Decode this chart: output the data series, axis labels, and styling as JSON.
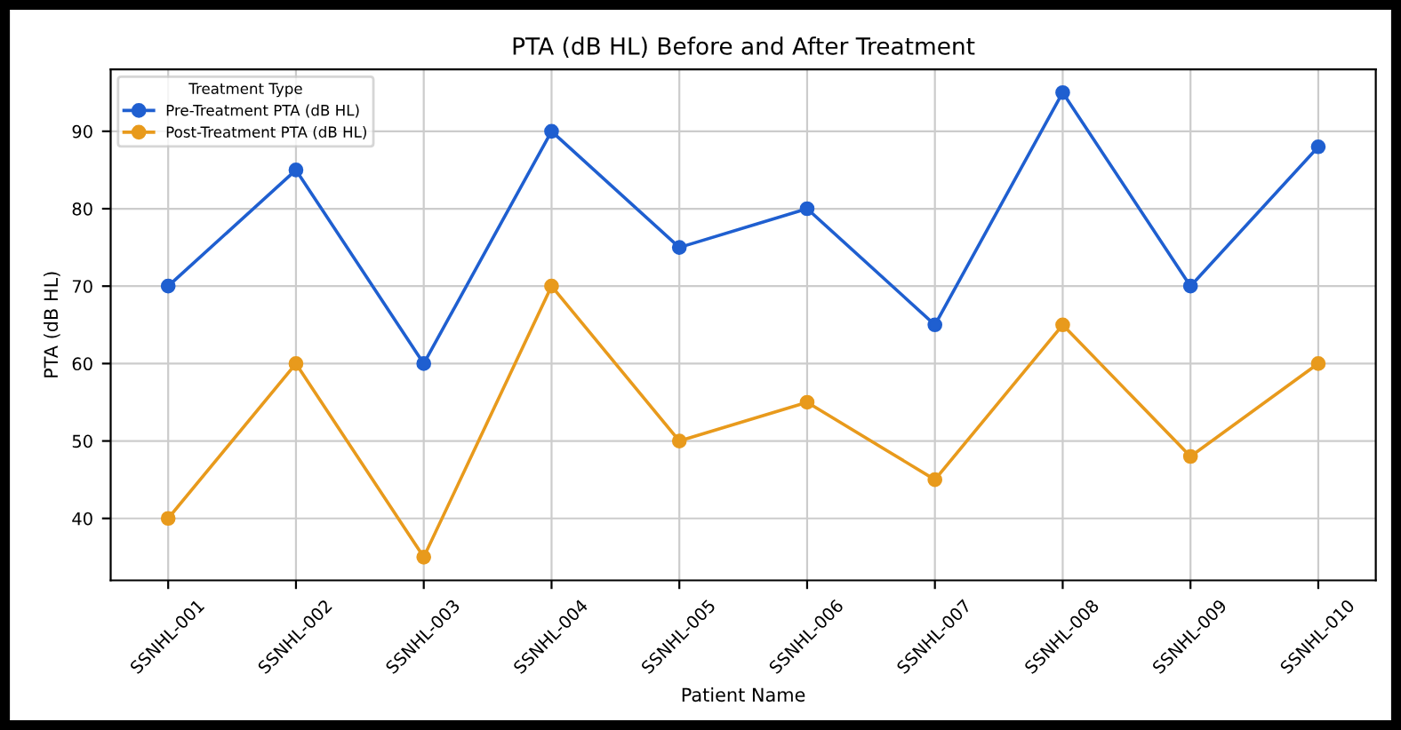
{
  "chart_data": {
    "type": "line",
    "title": "PTA (dB HL) Before and After Treatment",
    "xlabel": "Patient Name",
    "ylabel": "PTA (dB HL)",
    "legend_title": "Treatment Type",
    "categories": [
      "SSNHL-001",
      "SSNHL-002",
      "SSNHL-003",
      "SSNHL-004",
      "SSNHL-005",
      "SSNHL-006",
      "SSNHL-007",
      "SSNHL-008",
      "SSNHL-009",
      "SSNHL-010"
    ],
    "series": [
      {
        "name": "Pre-Treatment PTA (dB HL)",
        "color": "#1f5fd0",
        "values": [
          70,
          85,
          60,
          90,
          75,
          80,
          65,
          95,
          70,
          88
        ]
      },
      {
        "name": "Post-Treatment PTA (dB HL)",
        "color": "#e89a1c",
        "values": [
          40,
          60,
          35,
          70,
          50,
          55,
          45,
          65,
          48,
          60
        ]
      }
    ],
    "ylim": [
      32,
      98
    ],
    "yticks": [
      40,
      50,
      60,
      70,
      80,
      90
    ],
    "grid": true,
    "legend": "top left",
    "marker": "circle",
    "line_style": "solid"
  }
}
